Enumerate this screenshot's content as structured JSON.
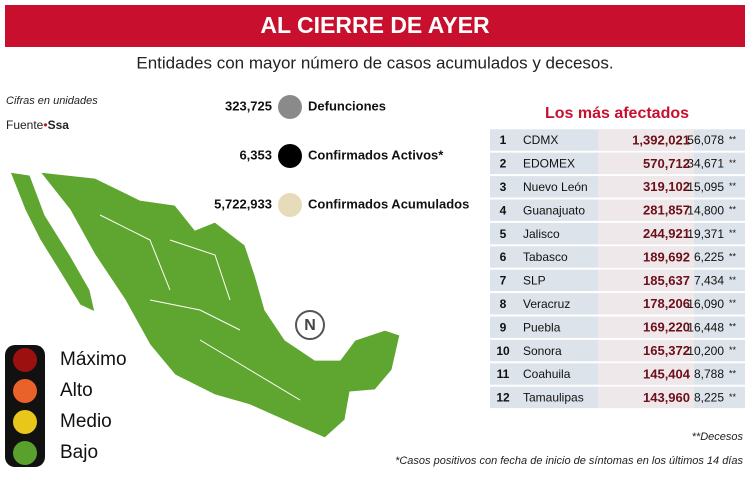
{
  "header": {
    "title": "AL CIERRE DE AYER",
    "subtitle": "Entidades con mayor número de casos acumulados y decesos."
  },
  "source": {
    "note": "Cifras en unidades",
    "label": "Fuente",
    "name": "Ssa"
  },
  "summary": [
    {
      "value": "323,725",
      "label": "Defunciones",
      "color": "#8a8a8a"
    },
    {
      "value": "6,353",
      "label": "Confirmados Activos*",
      "color": "#000000"
    },
    {
      "value": "5,722,933",
      "label": "Confirmados Acumulados",
      "color": "#e6dcb9"
    }
  ],
  "compass": {
    "label": "N"
  },
  "legend": [
    {
      "label": "Máximo",
      "color": "#9c1010"
    },
    {
      "label": "Alto",
      "color": "#e8622a"
    },
    {
      "label": "Medio",
      "color": "#e9c71a"
    },
    {
      "label": "Bajo",
      "color": "#5aa02c"
    }
  ],
  "table": {
    "title": "Los más afectados",
    "rows": [
      [
        "1",
        "CDMX",
        "1,392,021",
        "56,078",
        "**"
      ],
      [
        "2",
        "EDOMEX",
        "570,712",
        "34,671",
        "**"
      ],
      [
        "3",
        "Nuevo León",
        "319,102",
        "15,095",
        "**"
      ],
      [
        "4",
        "Guanajuato",
        "281,857",
        "14,800",
        "**"
      ],
      [
        "5",
        "Jalisco",
        "244,921",
        "19,371",
        "**"
      ],
      [
        "6",
        "Tabasco",
        "189,692",
        "6,225",
        "**"
      ],
      [
        "7",
        "SLP",
        "185,637",
        "7,434",
        "**"
      ],
      [
        "8",
        "Veracruz",
        "178,206",
        "16,090",
        "**"
      ],
      [
        "9",
        "Puebla",
        "169,220",
        "16,448",
        "**"
      ],
      [
        "10",
        "Sonora",
        "165,372",
        "10,200",
        "**"
      ],
      [
        "11",
        "Coahuila",
        "145,404",
        "8,788",
        "**"
      ],
      [
        "12",
        "Tamaulipas",
        "143,960",
        "8,225",
        "**"
      ]
    ]
  },
  "footnotes": [
    "**Decesos",
    "*Casos positivos con fecha de inicio de síntomas en los últimos 14 días"
  ]
}
